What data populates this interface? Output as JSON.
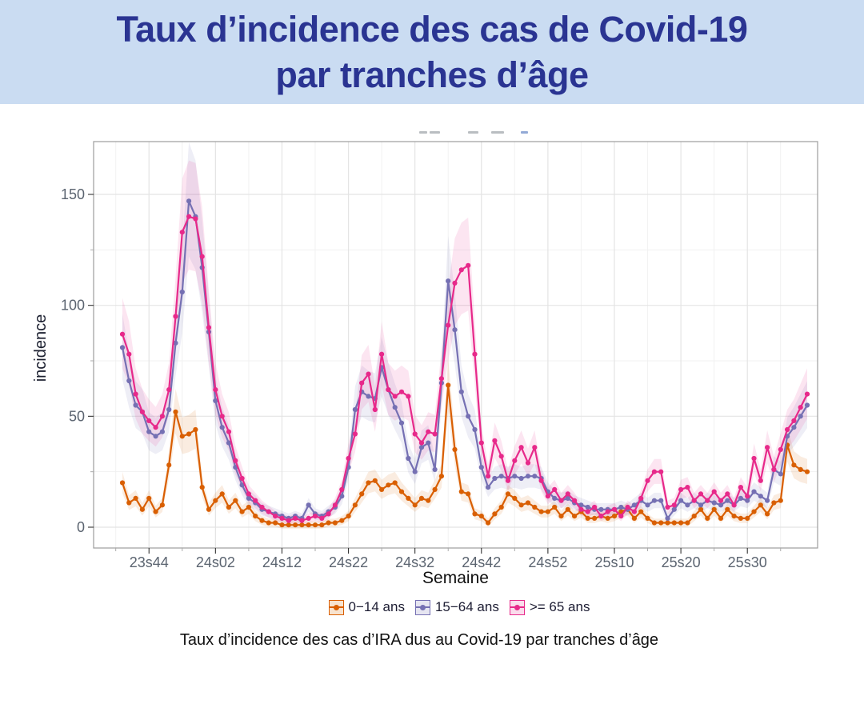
{
  "banner": {
    "title_line1": "Taux d’incidence des cas de Covid-19",
    "title_line2": "par tranches d’âge",
    "background": "#cadcf2",
    "text_color": "#2a3492"
  },
  "artifacts": {
    "note": "tiny cropped text remnants above the plot panel",
    "default_color": "#b9bdc1",
    "cropped_text_fragments": [
      {
        "x": 524,
        "w": 10
      },
      {
        "x": 537,
        "w": 13
      },
      {
        "x": 585,
        "w": 13
      },
      {
        "x": 614,
        "w": 16
      },
      {
        "x": 651,
        "w": 9,
        "color": "#93aad6"
      }
    ]
  },
  "chart_data": {
    "type": "line",
    "title": "",
    "xlabel": "Semaine",
    "ylabel": "incidence",
    "x_tick_labels": [
      "23s44",
      "24s02",
      "24s12",
      "24s22",
      "24s32",
      "24s42",
      "24s52",
      "25s10",
      "25s20",
      "25s30"
    ],
    "y_ticks": [
      0,
      50,
      100,
      150
    ],
    "y_tick_labels": [
      "0",
      "50",
      "100",
      "150"
    ],
    "y_minor_ticks": [
      25,
      75,
      125
    ],
    "ylim": [
      0,
      173
    ],
    "grid": true,
    "has_confidence_ribbons": true,
    "legend_position": "bottom",
    "weeks": [
      "23s40",
      "23s41",
      "23s42",
      "23s43",
      "23s44",
      "23s45",
      "23s46",
      "23s47",
      "23s48",
      "23s49",
      "23s50",
      "23s51",
      "23s52",
      "24s01",
      "24s02",
      "24s03",
      "24s04",
      "24s05",
      "24s06",
      "24s07",
      "24s08",
      "24s09",
      "24s10",
      "24s11",
      "24s12",
      "24s13",
      "24s14",
      "24s15",
      "24s16",
      "24s17",
      "24s18",
      "24s19",
      "24s20",
      "24s21",
      "24s22",
      "24s23",
      "24s24",
      "24s25",
      "24s26",
      "24s27",
      "24s28",
      "24s29",
      "24s30",
      "24s31",
      "24s32",
      "24s33",
      "24s34",
      "24s35",
      "24s36",
      "24s37",
      "24s38",
      "24s39",
      "24s40",
      "24s41",
      "24s42",
      "24s43",
      "24s44",
      "24s45",
      "24s46",
      "24s47",
      "24s48",
      "24s49",
      "24s50",
      "24s51",
      "24s52",
      "25s01",
      "25s02",
      "25s03",
      "25s04",
      "25s05",
      "25s06",
      "25s07",
      "25s08",
      "25s09",
      "25s10",
      "25s11",
      "25s12",
      "25s13",
      "25s14",
      "25s15",
      "25s16",
      "25s17",
      "25s18",
      "25s19",
      "25s20",
      "25s21",
      "25s22",
      "25s23",
      "25s24",
      "25s25",
      "25s26",
      "25s27",
      "25s28",
      "25s29",
      "25s30",
      "25s31",
      "25s32",
      "25s33",
      "25s34",
      "25s35",
      "25s36",
      "25s37",
      "25s38",
      "25s39"
    ],
    "series": [
      {
        "name": "0−14 ans",
        "color": "#d95f02",
        "fill": "#f8e3cf",
        "values": [
          20,
          11,
          13,
          8,
          13,
          7,
          10,
          28,
          52,
          41,
          42,
          44,
          18,
          8,
          12,
          15,
          9,
          12,
          7,
          9,
          5,
          3,
          2,
          2,
          1,
          1,
          1,
          1,
          1,
          1,
          1,
          2,
          2,
          3,
          5,
          10,
          15,
          20,
          21,
          17,
          19,
          20,
          16,
          13,
          10,
          13,
          12,
          17,
          23,
          64,
          35,
          16,
          15,
          6,
          5,
          2,
          6,
          9,
          15,
          13,
          10,
          11,
          9,
          7,
          7,
          9,
          5,
          8,
          5,
          7,
          4,
          4,
          5,
          4,
          5,
          7,
          8,
          4,
          7,
          4,
          2,
          2,
          2,
          2,
          2,
          2,
          5,
          8,
          4,
          8,
          4,
          8,
          5,
          4,
          4,
          7,
          10,
          6,
          11,
          12,
          37,
          28,
          26,
          25
        ]
      },
      {
        "name": "15−64 ans",
        "color": "#7570b3",
        "fill": "#e6e5f1",
        "values": [
          81,
          66,
          55,
          52,
          43,
          41,
          43,
          53,
          83,
          106,
          147,
          140,
          117,
          88,
          57,
          45,
          38,
          27,
          19,
          13,
          11,
          8,
          7,
          6,
          5,
          4,
          5,
          4,
          10,
          6,
          5,
          7,
          9,
          14,
          27,
          53,
          61,
          59,
          58,
          72,
          62,
          54,
          47,
          31,
          25,
          36,
          38,
          26,
          65,
          111,
          89,
          61,
          50,
          44,
          27,
          18,
          22,
          23,
          22,
          23,
          22,
          23,
          23,
          22,
          16,
          13,
          12,
          13,
          11,
          10,
          9,
          8,
          8,
          8,
          8,
          9,
          8,
          10,
          12,
          10,
          12,
          12,
          4,
          8,
          12,
          10,
          12,
          10,
          12,
          11,
          10,
          12,
          10,
          13,
          12,
          16,
          14,
          12,
          26,
          24,
          41,
          45,
          50,
          55
        ]
      },
      {
        "name": ">= 65 ans",
        "color": "#e7298a",
        "fill": "#fadcec",
        "values": [
          87,
          78,
          60,
          52,
          48,
          45,
          50,
          62,
          95,
          133,
          140,
          139,
          122,
          90,
          62,
          50,
          43,
          30,
          22,
          15,
          12,
          9,
          7,
          5,
          4,
          3,
          4,
          3,
          4,
          5,
          4,
          6,
          10,
          17,
          31,
          42,
          65,
          69,
          53,
          78,
          62,
          59,
          61,
          59,
          42,
          38,
          43,
          42,
          67,
          91,
          110,
          116,
          118,
          78,
          38,
          23,
          39,
          32,
          21,
          30,
          36,
          29,
          36,
          21,
          14,
          17,
          12,
          15,
          12,
          8,
          7,
          9,
          5,
          7,
          8,
          5,
          9,
          7,
          13,
          21,
          25,
          25,
          9,
          10,
          17,
          18,
          12,
          15,
          12,
          16,
          12,
          15,
          10,
          18,
          14,
          31,
          21,
          36,
          26,
          35,
          44,
          48,
          54,
          60
        ]
      }
    ]
  },
  "caption": {
    "text": "Taux d’incidence des cas d’IRA dus au Covid-19 par tranches d’âge"
  }
}
